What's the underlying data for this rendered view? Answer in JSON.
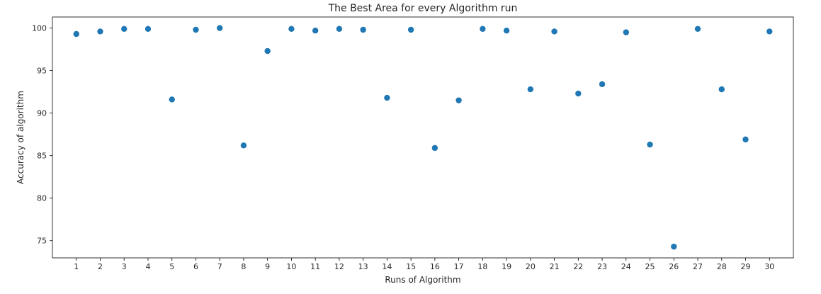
{
  "chart_data": {
    "type": "scatter",
    "title": "The Best Area for every Algorithm run",
    "xlabel": "Runs of Algorithm",
    "ylabel": "Accuracy of algorithm",
    "x": [
      1,
      2,
      3,
      4,
      5,
      6,
      7,
      8,
      9,
      10,
      11,
      12,
      13,
      14,
      15,
      16,
      17,
      18,
      19,
      20,
      21,
      22,
      23,
      24,
      25,
      26,
      27,
      28,
      29,
      30
    ],
    "y": [
      99.3,
      99.6,
      99.9,
      99.9,
      91.6,
      99.8,
      100.0,
      86.2,
      97.3,
      99.9,
      99.7,
      99.9,
      99.8,
      91.8,
      99.8,
      85.9,
      91.5,
      99.9,
      99.7,
      92.8,
      99.6,
      92.3,
      93.4,
      99.5,
      86.3,
      74.3,
      99.9,
      92.8,
      86.9,
      99.6
    ],
    "xticks": [
      "1",
      "2",
      "3",
      "4",
      "5",
      "6",
      "7",
      "8",
      "9",
      "10",
      "11",
      "12",
      "13",
      "14",
      "15",
      "16",
      "17",
      "18",
      "19",
      "20",
      "21",
      "22",
      "23",
      "24",
      "25",
      "26",
      "27",
      "28",
      "29",
      "30"
    ],
    "yticks": [
      "75",
      "80",
      "85",
      "90",
      "95",
      "100"
    ],
    "xlim": [
      0.0,
      31.0
    ],
    "ylim": [
      72.98,
      101.3
    ],
    "grid": false,
    "marker_color": "#1f77b4"
  }
}
